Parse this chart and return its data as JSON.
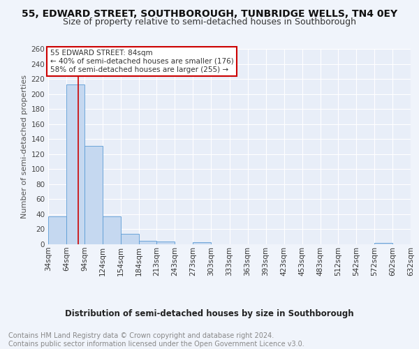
{
  "title1": "55, EDWARD STREET, SOUTHBOROUGH, TUNBRIDGE WELLS, TN4 0EY",
  "title2": "Size of property relative to semi-detached houses in Southborough",
  "xlabel": "Distribution of semi-detached houses by size in Southborough",
  "ylabel": "Number of semi-detached properties",
  "footer": "Contains HM Land Registry data © Crown copyright and database right 2024.\nContains public sector information licensed under the Open Government Licence v3.0.",
  "annotation_title": "55 EDWARD STREET: 84sqm",
  "annotation_line1": "← 40% of semi-detached houses are smaller (176)",
  "annotation_line2": "58% of semi-detached houses are larger (255) →",
  "property_size": 84,
  "bin_edges": [
    34,
    64,
    94,
    124,
    154,
    184,
    213,
    243,
    273,
    303,
    333,
    363,
    393,
    423,
    453,
    483,
    512,
    542,
    572,
    602,
    632
  ],
  "bin_labels": [
    "34sqm",
    "64sqm",
    "94sqm",
    "124sqm",
    "154sqm",
    "184sqm",
    "213sqm",
    "243sqm",
    "273sqm",
    "303sqm",
    "333sqm",
    "363sqm",
    "393sqm",
    "423sqm",
    "453sqm",
    "483sqm",
    "512sqm",
    "542sqm",
    "572sqm",
    "602sqm",
    "632sqm"
  ],
  "counts": [
    37,
    213,
    131,
    37,
    14,
    5,
    4,
    0,
    3,
    0,
    0,
    0,
    0,
    0,
    0,
    0,
    0,
    0,
    2,
    0,
    0
  ],
  "bar_color": "#c5d8f0",
  "bar_edge_color": "#5b9bd5",
  "red_line_x": 84,
  "ylim": [
    0,
    260
  ],
  "yticks": [
    0,
    20,
    40,
    60,
    80,
    100,
    120,
    140,
    160,
    180,
    200,
    220,
    240,
    260
  ],
  "bg_color": "#f0f4fb",
  "plot_bg_color": "#e8eef8",
  "grid_color": "#ffffff",
  "annotation_box_color": "#ffffff",
  "annotation_box_edge": "#cc0000",
  "title1_fontsize": 10,
  "title2_fontsize": 9,
  "axis_label_fontsize": 8.5,
  "tick_fontsize": 7.5,
  "footer_fontsize": 7,
  "ylabel_fontsize": 8
}
